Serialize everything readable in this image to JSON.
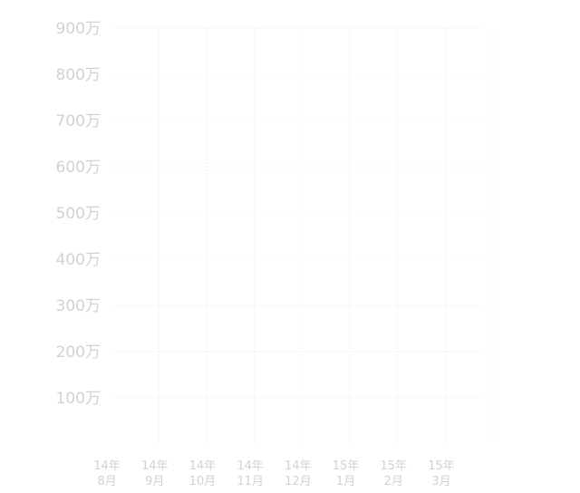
{
  "chart_data": {
    "type": "line",
    "title": "",
    "xlabel": "",
    "ylabel": "",
    "categories": [
      [
        "14年",
        "8月"
      ],
      [
        "14年",
        "9月"
      ],
      [
        "14年",
        "10月"
      ],
      [
        "14年",
        "11月"
      ],
      [
        "14年",
        "12月"
      ],
      [
        "15年",
        "1月"
      ],
      [
        "15年",
        "2月"
      ],
      [
        "15年",
        "3月"
      ]
    ],
    "y_ticks": [
      "100万",
      "200万",
      "300万",
      "400万",
      "500万",
      "600万",
      "700万",
      "800万",
      "900万"
    ],
    "y_tick_values": [
      1000000,
      2000000,
      3000000,
      4000000,
      5000000,
      6000000,
      7000000,
      8000000,
      9000000
    ],
    "ylim": [
      0,
      9000000
    ],
    "grid": true,
    "series": [],
    "colors": {
      "tick_text": "#d2d2d2",
      "grid": "#f0f0f0"
    }
  }
}
